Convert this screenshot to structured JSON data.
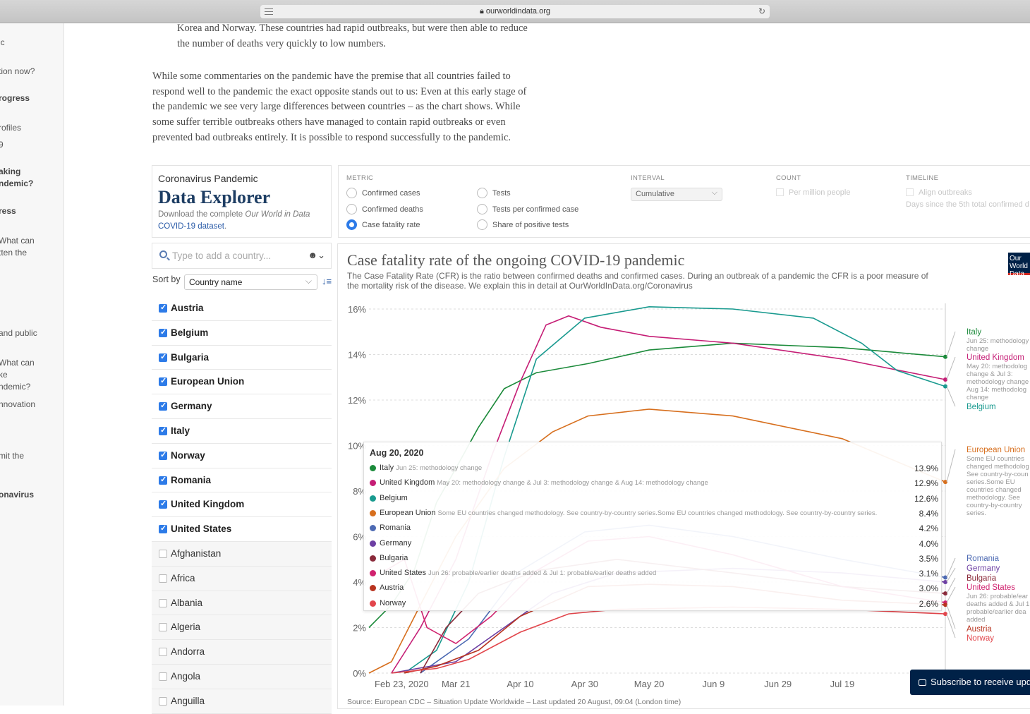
{
  "browser": {
    "url": "ourworldindata.org"
  },
  "left_nav": [
    {
      "text": "ic",
      "bold": false
    },
    {
      "text": "tion now?",
      "bold": false
    },
    {
      "text": "rogress",
      "bold": true
    },
    {
      "text": "rofiles",
      "bold": false
    },
    {
      "text": "9",
      "bold": false
    },
    {
      "text": "aking",
      "bold": true
    },
    {
      "text": "ndemic?",
      "bold": true
    },
    {
      "text": "ress",
      "bold": true
    },
    {
      "text": "What can",
      "bold": false
    },
    {
      "text": "tten the",
      "bold": false
    },
    {
      "text": "and public",
      "bold": false
    },
    {
      "text": "What can",
      "bold": false
    },
    {
      "text": "ke",
      "bold": false
    },
    {
      "text": "ndemic?",
      "bold": false
    },
    {
      "text": "nnovation",
      "bold": false
    },
    {
      "text": "mit the",
      "bold": false
    },
    {
      "text": "onavirus",
      "bold": true
    }
  ],
  "article": {
    "p1_lines": [
      "Korea and Norway. These countries had rapid outbreaks, but were then able to reduce",
      "the number of deaths very quickly to low numbers."
    ],
    "p2_lines": [
      "While some commentaries on the pandemic have the premise that all countries failed to",
      "respond well to the pandemic the exact opposite stands out to us: Even at this early stage of",
      "the pandemic we see very large differences between countries – as the chart shows. While",
      "some suffer terrible outbreaks others have managed to contain rapid outbreaks or even",
      "prevented bad outbreaks entirely. It is possible to respond successfully to the pandemic."
    ]
  },
  "explorer": {
    "subtitle": "Coronavirus Pandemic",
    "title": "Data Explorer",
    "download_text": "Download the complete ",
    "download_italic": "Our World in Data",
    "download_link": "COVID-19 dataset",
    "download_end": "."
  },
  "controls": {
    "metric_label": "METRIC",
    "metrics": [
      {
        "label": "Confirmed cases",
        "selected": false
      },
      {
        "label": "Confirmed deaths",
        "selected": false
      },
      {
        "label": "Case fatality rate",
        "selected": true
      },
      {
        "label": "Tests",
        "selected": false
      },
      {
        "label": "Tests per confirmed case",
        "selected": false
      },
      {
        "label": "Share of positive tests",
        "selected": false
      }
    ],
    "interval_label": "INTERVAL",
    "interval_value": "Cumulative",
    "count_label": "COUNT",
    "count_option": "Per million people",
    "timeline_label": "TIMELINE",
    "timeline_option": "Align outbreaks",
    "timeline_note": "Days since the 5th total confirmed d"
  },
  "search": {
    "placeholder": "Type to add a country..."
  },
  "sort": {
    "label": "Sort by",
    "value": "Country name"
  },
  "countries": [
    {
      "name": "Austria",
      "checked": true
    },
    {
      "name": "Belgium",
      "checked": true
    },
    {
      "name": "Bulgaria",
      "checked": true
    },
    {
      "name": "European Union",
      "checked": true
    },
    {
      "name": "Germany",
      "checked": true
    },
    {
      "name": "Italy",
      "checked": true
    },
    {
      "name": "Norway",
      "checked": true
    },
    {
      "name": "Romania",
      "checked": true
    },
    {
      "name": "United Kingdom",
      "checked": true
    },
    {
      "name": "United States",
      "checked": true
    },
    {
      "name": "Afghanistan",
      "checked": false
    },
    {
      "name": "Africa",
      "checked": false
    },
    {
      "name": "Albania",
      "checked": false
    },
    {
      "name": "Algeria",
      "checked": false
    },
    {
      "name": "Andorra",
      "checked": false
    },
    {
      "name": "Angola",
      "checked": false
    },
    {
      "name": "Anguilla",
      "checked": false
    }
  ],
  "chart_data": {
    "type": "line",
    "title": "Case fatality rate of the ongoing COVID-19 pandemic",
    "subtitle": "The Case Fatality Rate (CFR) is the ratio between confirmed deaths and confirmed cases. During an outbreak of a pandemic the CFR is a poor measure of the mortality risk of the disease. We explain this in detail at OurWorldInData.org/Coronavirus",
    "logo_text": "Our World in Data",
    "source": "Source: European CDC – Situation Update Worldwide – Last updated 20 August, 09:04 (London time)",
    "y_unit": "%",
    "ylim": [
      0,
      16
    ],
    "y_ticks": [
      "0%",
      "2%",
      "4%",
      "6%",
      "8%",
      "10%",
      "12%",
      "14%",
      "16%"
    ],
    "x_ticks": [
      "Feb 23, 2020",
      "Mar 21",
      "Apr 10",
      "Apr 30",
      "May 20",
      "Jun 9",
      "Jun 29",
      "Jul 19"
    ],
    "x_domain": [
      "2020-02-23",
      "2020-08-20"
    ],
    "series": [
      {
        "name": "Italy",
        "color": "#1b8a3a",
        "note": "Jun 25: methodology change",
        "last": 13.9,
        "points": [
          [
            "2020-02-23",
            2.0
          ],
          [
            "2020-03-01",
            3.0
          ],
          [
            "2020-03-08",
            4.5
          ],
          [
            "2020-03-15",
            7.5
          ],
          [
            "2020-03-21",
            9.0
          ],
          [
            "2020-03-28",
            10.8
          ],
          [
            "2020-04-05",
            12.5
          ],
          [
            "2020-04-15",
            13.2
          ],
          [
            "2020-05-01",
            13.6
          ],
          [
            "2020-05-20",
            14.2
          ],
          [
            "2020-06-15",
            14.5
          ],
          [
            "2020-07-19",
            14.3
          ],
          [
            "2020-08-20",
            13.9
          ]
        ]
      },
      {
        "name": "United Kingdom",
        "color": "#c51d75",
        "note": "May 20: methodology change & Jul 3: methodology change & Aug 14: methodology change",
        "last": 12.9,
        "points": [
          [
            "2020-03-01",
            0.0
          ],
          [
            "2020-03-10",
            2.0
          ],
          [
            "2020-03-21",
            5.0
          ],
          [
            "2020-04-01",
            9.5
          ],
          [
            "2020-04-10",
            12.8
          ],
          [
            "2020-04-18",
            15.3
          ],
          [
            "2020-04-25",
            15.7
          ],
          [
            "2020-05-05",
            15.2
          ],
          [
            "2020-05-20",
            14.8
          ],
          [
            "2020-06-15",
            14.5
          ],
          [
            "2020-07-19",
            13.8
          ],
          [
            "2020-08-20",
            12.9
          ]
        ]
      },
      {
        "name": "Belgium",
        "color": "#199a8f",
        "note": "",
        "last": 12.6,
        "points": [
          [
            "2020-03-05",
            0.0
          ],
          [
            "2020-03-15",
            1.0
          ],
          [
            "2020-03-25",
            4.0
          ],
          [
            "2020-04-05",
            9.5
          ],
          [
            "2020-04-15",
            13.8
          ],
          [
            "2020-04-30",
            15.6
          ],
          [
            "2020-05-20",
            16.1
          ],
          [
            "2020-06-15",
            16.0
          ],
          [
            "2020-07-10",
            15.6
          ],
          [
            "2020-07-25",
            14.5
          ],
          [
            "2020-08-05",
            13.3
          ],
          [
            "2020-08-20",
            12.6
          ]
        ]
      },
      {
        "name": "European Union",
        "color": "#d76f1e",
        "note": "Some EU countries changed methodology. See country-by-country series.Some EU countries changed methodology. See country-by-country series.",
        "last": 8.4,
        "points": [
          [
            "2020-02-23",
            0.0
          ],
          [
            "2020-03-01",
            0.5
          ],
          [
            "2020-03-10",
            3.0
          ],
          [
            "2020-03-21",
            6.0
          ],
          [
            "2020-04-05",
            9.0
          ],
          [
            "2020-04-20",
            10.6
          ],
          [
            "2020-05-01",
            11.3
          ],
          [
            "2020-05-20",
            11.6
          ],
          [
            "2020-06-15",
            11.3
          ],
          [
            "2020-07-19",
            10.3
          ],
          [
            "2020-08-20",
            8.4
          ]
        ]
      },
      {
        "name": "Romania",
        "color": "#4d6ab3",
        "note": "",
        "last": 4.2,
        "points": [
          [
            "2020-03-10",
            0.0
          ],
          [
            "2020-03-25",
            1.5
          ],
          [
            "2020-04-10",
            4.5
          ],
          [
            "2020-04-30",
            6.2
          ],
          [
            "2020-05-20",
            6.5
          ],
          [
            "2020-06-15",
            6.0
          ],
          [
            "2020-07-19",
            5.0
          ],
          [
            "2020-08-20",
            4.2
          ]
        ]
      },
      {
        "name": "Germany",
        "color": "#6d3fa3",
        "note": "",
        "last": 4.0,
        "points": [
          [
            "2020-03-01",
            0.0
          ],
          [
            "2020-03-21",
            0.5
          ],
          [
            "2020-04-05",
            2.0
          ],
          [
            "2020-04-20",
            3.5
          ],
          [
            "2020-05-10",
            4.4
          ],
          [
            "2020-06-15",
            4.6
          ],
          [
            "2020-07-19",
            4.4
          ],
          [
            "2020-08-20",
            4.0
          ]
        ]
      },
      {
        "name": "Bulgaria",
        "color": "#8a2a3a",
        "note": "",
        "last": 3.5,
        "points": [
          [
            "2020-03-10",
            0.0
          ],
          [
            "2020-03-18",
            2.0
          ],
          [
            "2020-03-28",
            3.5
          ],
          [
            "2020-04-15",
            4.5
          ],
          [
            "2020-05-10",
            5.0
          ],
          [
            "2020-06-15",
            4.4
          ],
          [
            "2020-07-19",
            3.8
          ],
          [
            "2020-08-20",
            3.5
          ]
        ]
      },
      {
        "name": "United States",
        "color": "#d0226e",
        "note": "Jun 26: probable/earlier deaths added & Jul 1: probable/earlier deaths added",
        "last": 3.1,
        "points": [
          [
            "2020-02-28",
            4.5
          ],
          [
            "2020-03-05",
            5.0
          ],
          [
            "2020-03-12",
            2.0
          ],
          [
            "2020-03-21",
            1.3
          ],
          [
            "2020-04-01",
            2.5
          ],
          [
            "2020-04-15",
            4.5
          ],
          [
            "2020-05-01",
            5.8
          ],
          [
            "2020-05-20",
            6.0
          ],
          [
            "2020-06-15",
            5.2
          ],
          [
            "2020-07-19",
            3.8
          ],
          [
            "2020-08-20",
            3.1
          ]
        ]
      },
      {
        "name": "Austria",
        "color": "#b8331f",
        "note": "",
        "last": 3.0,
        "points": [
          [
            "2020-03-05",
            0.0
          ],
          [
            "2020-03-15",
            0.3
          ],
          [
            "2020-03-28",
            1.0
          ],
          [
            "2020-04-10",
            2.5
          ],
          [
            "2020-05-01",
            3.8
          ],
          [
            "2020-05-20",
            3.9
          ],
          [
            "2020-06-15",
            3.8
          ],
          [
            "2020-07-19",
            3.2
          ],
          [
            "2020-08-20",
            3.0
          ]
        ]
      },
      {
        "name": "Norway",
        "color": "#e2464c",
        "note": "",
        "last": 2.6,
        "points": [
          [
            "2020-03-01",
            0.0
          ],
          [
            "2020-03-15",
            0.2
          ],
          [
            "2020-03-25",
            0.6
          ],
          [
            "2020-04-10",
            1.8
          ],
          [
            "2020-04-25",
            2.6
          ],
          [
            "2020-05-10",
            2.8
          ],
          [
            "2020-06-15",
            2.9
          ],
          [
            "2020-07-19",
            2.8
          ],
          [
            "2020-08-20",
            2.6
          ]
        ]
      }
    ],
    "end_labels": [
      {
        "name": "Italy",
        "note": "Jun 25: methodology change"
      },
      {
        "name": "United Kingdom",
        "note": "May 20: methodology change & Jul 3: methodology change & Aug 14: methodology change"
      },
      {
        "name": "Belgium",
        "note": ""
      },
      {
        "name": "European Union",
        "note": "Some EU countries changed methodology. See country-by-country series.Some EU countries changed methodology. See country-by-country series."
      },
      {
        "name": "Romania",
        "note": ""
      },
      {
        "name": "Germany",
        "note": ""
      },
      {
        "name": "Bulgaria",
        "note": ""
      },
      {
        "name": "United States",
        "note": "Jun 26: probable/earlier deaths added & Jul 1: probable/earlier deaths added"
      },
      {
        "name": "Austria",
        "note": ""
      },
      {
        "name": "Norway",
        "note": ""
      }
    ],
    "tooltip_date": "Aug 20, 2020"
  },
  "subscribe_label": "Subscribe to receive upd"
}
